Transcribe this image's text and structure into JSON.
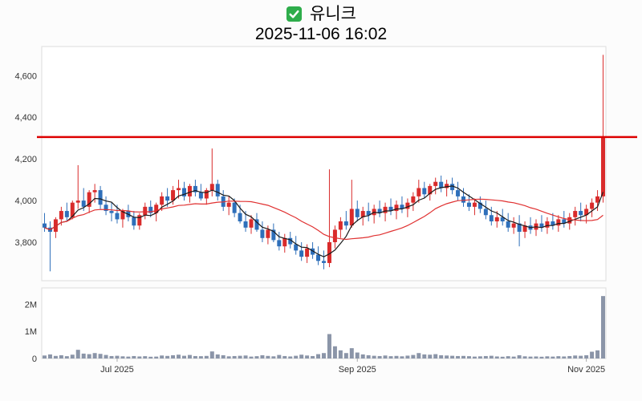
{
  "header": {
    "title": "유니크",
    "timestamp": "2025-11-06 16:02",
    "check_color": "#2ead4b",
    "icons": {
      "title_prefix": "checked-checkbox-icon"
    }
  },
  "chart_data": {
    "type": "candlestick",
    "title": "유니크",
    "subtitle": "2025-11-06 16:02",
    "ylim": [
      3615,
      4740
    ],
    "y_ticks": [
      {
        "value": 3800,
        "label": "3,800"
      },
      {
        "value": 4000,
        "label": "4,000"
      },
      {
        "value": 4200,
        "label": "4,200"
      },
      {
        "value": 4400,
        "label": "4,400"
      },
      {
        "value": 4600,
        "label": "4,600"
      }
    ],
    "x_ticks": [
      {
        "index": 13,
        "label": "Jul 2025"
      },
      {
        "index": 56,
        "label": "Sep 2025"
      },
      {
        "index": 97,
        "label": "Nov 2025"
      }
    ],
    "volume_lim": [
      0,
      2600000
    ],
    "volume_ticks": [
      {
        "value": 0,
        "label": "0"
      },
      {
        "value": 1000000,
        "label": "1M"
      },
      {
        "value": 2000000,
        "label": "2M"
      }
    ],
    "ref_line": {
      "value": 4305,
      "color": "#dd0000"
    },
    "colors": {
      "up": "#d92b2b",
      "down": "#2e6fba",
      "volume": "#8b95a8",
      "ma_fast": "#1a1a1a",
      "ma_slow": "#e03131",
      "frame": "#dddddd",
      "plot_bg": "#ffffff"
    },
    "moving_averages": [
      {
        "period": 5,
        "color_key": "ma_fast"
      },
      {
        "period": 20,
        "color_key": "ma_slow"
      }
    ],
    "candles": [
      [
        3890,
        3940,
        3850,
        3870,
        110000
      ],
      [
        3870,
        3900,
        3660,
        3850,
        150000
      ],
      [
        3850,
        3920,
        3820,
        3910,
        95000
      ],
      [
        3910,
        3970,
        3880,
        3950,
        120000
      ],
      [
        3950,
        3990,
        3900,
        3920,
        85000
      ],
      [
        3920,
        4000,
        3910,
        3990,
        140000
      ],
      [
        3990,
        4170,
        3960,
        4000,
        320000
      ],
      [
        4000,
        4060,
        3950,
        3970,
        180000
      ],
      [
        3970,
        4050,
        3940,
        4040,
        160000
      ],
      [
        4040,
        4080,
        3990,
        4050,
        200000
      ],
      [
        4050,
        4070,
        3960,
        3980,
        170000
      ],
      [
        3980,
        4020,
        3930,
        3950,
        130000
      ],
      [
        3950,
        3990,
        3900,
        3940,
        90000
      ],
      [
        3940,
        3980,
        3890,
        3910,
        100000
      ],
      [
        3910,
        3960,
        3870,
        3950,
        80000
      ],
      [
        3950,
        3980,
        3900,
        3920,
        70000
      ],
      [
        3920,
        3950,
        3860,
        3880,
        90000
      ],
      [
        3880,
        3940,
        3860,
        3930,
        75000
      ],
      [
        3930,
        3990,
        3910,
        3970,
        85000
      ],
      [
        3970,
        4000,
        3920,
        3940,
        65000
      ],
      [
        3940,
        3990,
        3900,
        3980,
        70000
      ],
      [
        3980,
        4040,
        3950,
        4020,
        110000
      ],
      [
        4020,
        4060,
        3970,
        4000,
        95000
      ],
      [
        4000,
        4070,
        3980,
        4050,
        120000
      ],
      [
        4050,
        4100,
        4010,
        4060,
        140000
      ],
      [
        4060,
        4090,
        4000,
        4020,
        100000
      ],
      [
        4020,
        4080,
        3990,
        4070,
        130000
      ],
      [
        4070,
        4100,
        4020,
        4040,
        90000
      ],
      [
        4040,
        4080,
        4000,
        4010,
        85000
      ],
      [
        4010,
        4060,
        3980,
        4050,
        95000
      ],
      [
        4050,
        4250,
        4020,
        4080,
        260000
      ],
      [
        4080,
        4100,
        4000,
        4020,
        150000
      ],
      [
        4020,
        4050,
        3950,
        3970,
        120000
      ],
      [
        3970,
        4020,
        3930,
        3990,
        80000
      ],
      [
        3990,
        4010,
        3920,
        3940,
        90000
      ],
      [
        3940,
        3980,
        3890,
        3900,
        100000
      ],
      [
        3900,
        3950,
        3850,
        3870,
        110000
      ],
      [
        3870,
        3930,
        3840,
        3910,
        70000
      ],
      [
        3910,
        3940,
        3850,
        3860,
        85000
      ],
      [
        3860,
        3900,
        3800,
        3820,
        120000
      ],
      [
        3820,
        3880,
        3790,
        3860,
        95000
      ],
      [
        3860,
        3890,
        3800,
        3810,
        80000
      ],
      [
        3810,
        3850,
        3760,
        3780,
        130000
      ],
      [
        3780,
        3840,
        3750,
        3820,
        90000
      ],
      [
        3820,
        3850,
        3770,
        3790,
        75000
      ],
      [
        3790,
        3830,
        3740,
        3760,
        100000
      ],
      [
        3760,
        3800,
        3710,
        3730,
        140000
      ],
      [
        3730,
        3790,
        3700,
        3770,
        110000
      ],
      [
        3770,
        3800,
        3720,
        3740,
        90000
      ],
      [
        3740,
        3780,
        3690,
        3710,
        160000
      ],
      [
        3710,
        3760,
        3670,
        3700,
        200000
      ],
      [
        3700,
        4150,
        3680,
        3800,
        900000
      ],
      [
        3800,
        3880,
        3770,
        3860,
        450000
      ],
      [
        3860,
        3920,
        3820,
        3900,
        300000
      ],
      [
        3900,
        3950,
        3860,
        3880,
        200000
      ],
      [
        3880,
        4100,
        3870,
        3960,
        380000
      ],
      [
        3960,
        4000,
        3900,
        3920,
        220000
      ],
      [
        3920,
        3970,
        3880,
        3950,
        150000
      ],
      [
        3950,
        3990,
        3900,
        3930,
        120000
      ],
      [
        3930,
        3980,
        3890,
        3960,
        100000
      ],
      [
        3960,
        4000,
        3920,
        3940,
        90000
      ],
      [
        3940,
        3990,
        3900,
        3970,
        110000
      ],
      [
        3970,
        4010,
        3930,
        3950,
        85000
      ],
      [
        3950,
        4000,
        3910,
        3980,
        95000
      ],
      [
        3980,
        4020,
        3940,
        3960,
        80000
      ],
      [
        3960,
        4010,
        3920,
        3990,
        105000
      ],
      [
        3990,
        4040,
        3950,
        4020,
        130000
      ],
      [
        4020,
        4100,
        3990,
        4060,
        200000
      ],
      [
        4060,
        4090,
        4010,
        4030,
        150000
      ],
      [
        4030,
        4080,
        4000,
        4070,
        140000
      ],
      [
        4070,
        4110,
        4030,
        4090,
        160000
      ],
      [
        4090,
        4120,
        4040,
        4060,
        120000
      ],
      [
        4060,
        4100,
        4020,
        4080,
        110000
      ],
      [
        4080,
        4110,
        4030,
        4050,
        100000
      ],
      [
        4050,
        4090,
        4000,
        4020,
        90000
      ],
      [
        4020,
        4060,
        3970,
        3990,
        95000
      ],
      [
        3990,
        4030,
        3950,
        3970,
        85000
      ],
      [
        3970,
        4010,
        3930,
        3990,
        70000
      ],
      [
        3990,
        4020,
        3940,
        3960,
        80000
      ],
      [
        3960,
        4000,
        3910,
        3930,
        90000
      ],
      [
        3930,
        3970,
        3880,
        3900,
        100000
      ],
      [
        3900,
        3950,
        3870,
        3920,
        75000
      ],
      [
        3920,
        3960,
        3880,
        3900,
        65000
      ],
      [
        3900,
        3940,
        3850,
        3870,
        85000
      ],
      [
        3870,
        3920,
        3840,
        3890,
        70000
      ],
      [
        3890,
        3930,
        3780,
        3850,
        120000
      ],
      [
        3850,
        3900,
        3820,
        3880,
        80000
      ],
      [
        3880,
        3920,
        3840,
        3860,
        70000
      ],
      [
        3860,
        3910,
        3830,
        3890,
        75000
      ],
      [
        3890,
        3930,
        3850,
        3870,
        65000
      ],
      [
        3870,
        3920,
        3840,
        3900,
        80000
      ],
      [
        3900,
        3940,
        3860,
        3880,
        70000
      ],
      [
        3880,
        3930,
        3850,
        3910,
        85000
      ],
      [
        3910,
        3950,
        3870,
        3890,
        75000
      ],
      [
        3890,
        3940,
        3860,
        3920,
        90000
      ],
      [
        3920,
        3970,
        3880,
        3950,
        110000
      ],
      [
        3950,
        3990,
        3900,
        3930,
        100000
      ],
      [
        3930,
        3980,
        3890,
        3960,
        120000
      ],
      [
        3960,
        4010,
        3920,
        3990,
        250000
      ],
      [
        3990,
        4050,
        3950,
        4020,
        300000
      ],
      [
        4020,
        4700,
        3990,
        4305,
        2300000
      ]
    ]
  }
}
